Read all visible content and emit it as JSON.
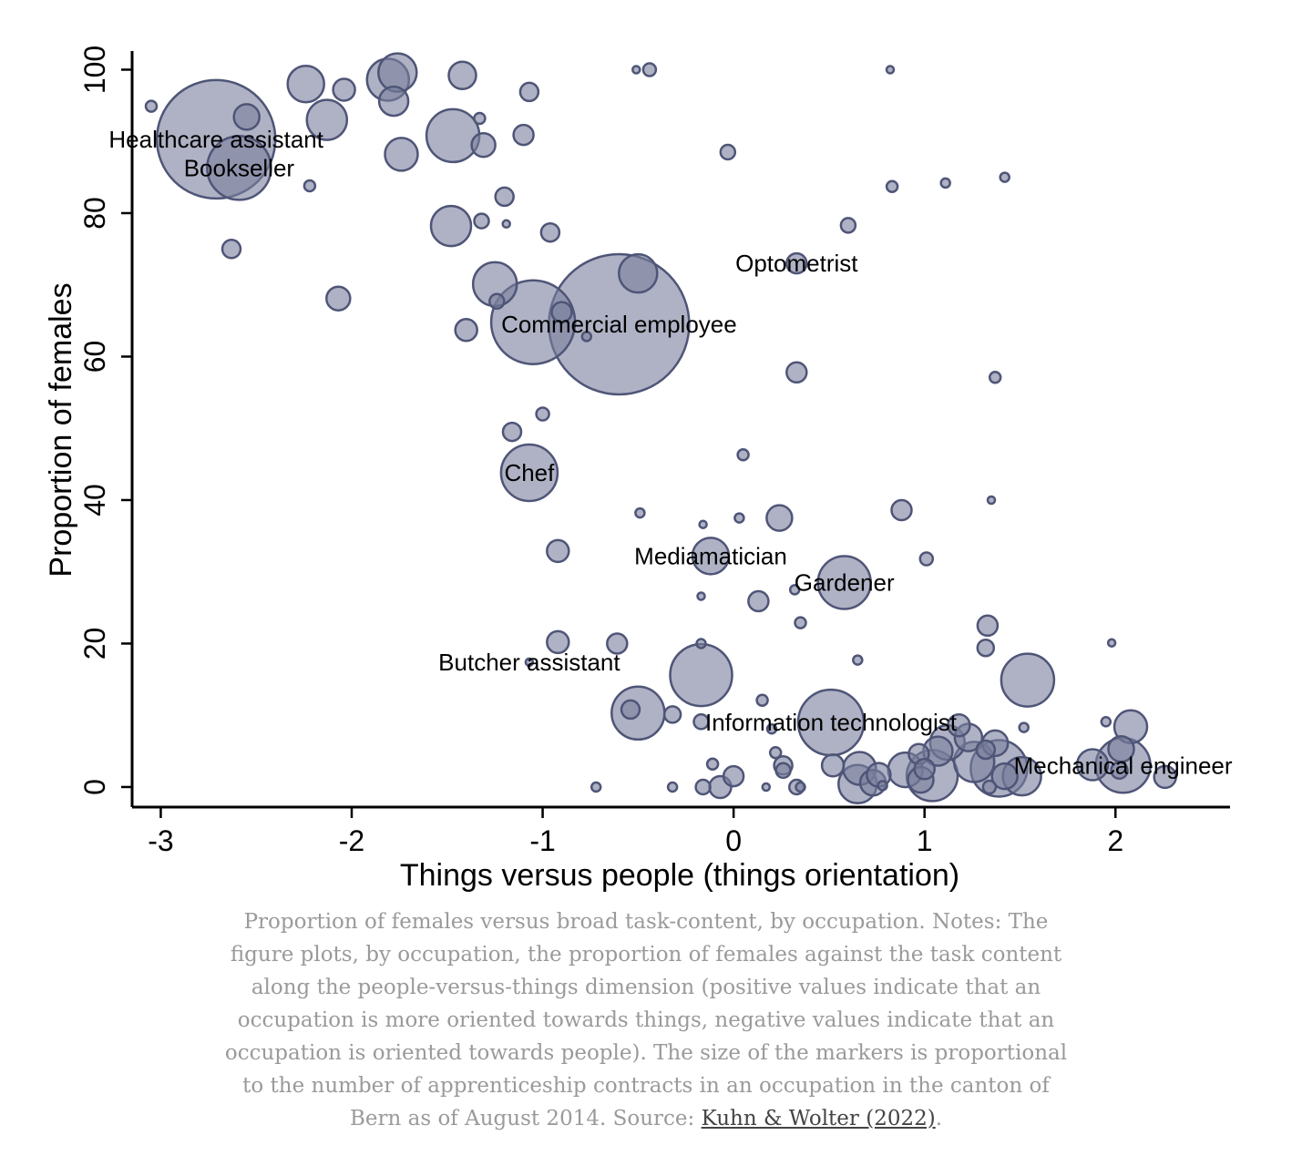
{
  "caption": {
    "text": "Proportion of females versus broad task-content, by occupation. Notes: The figure plots, by occupation, the proportion of females against the task content along the people-versus-things dimension (positive values indicate that an occupation is more oriented towards things, negative values indicate that an occupation is oriented towards people). The size of the markers is proportional to the number of apprenticeship contracts in an occupation in the canton of Bern as of August 2014. Source: ",
    "link_text": "Kuhn & Wolter (2022)",
    "end": "."
  },
  "colors": {
    "bubble_fill": "#7a7f9d",
    "bubble_stroke": "#4f5577"
  },
  "chart_data": {
    "type": "scatter",
    "title": "",
    "xlabel": "Things versus people (things orientation)",
    "ylabel": "Proportion of females",
    "xlim": [
      -3.15,
      2.6
    ],
    "ylim": [
      -2.8,
      102.6
    ],
    "xticks": [
      -3,
      -2,
      -1,
      0,
      1,
      2
    ],
    "xtick_labels": [
      "-3",
      "-2",
      "-1",
      "0",
      "1",
      "2"
    ],
    "yticks": [
      0,
      20,
      40,
      60,
      80,
      100
    ],
    "ytick_labels": [
      "0",
      "20",
      "40",
      "60",
      "80",
      "100"
    ],
    "size_note": "marker size ~ number of apprenticeship contracts",
    "points": [
      {
        "x": -2.71,
        "y": 90.3,
        "r": 65,
        "label": "Healthcare assistant"
      },
      {
        "x": -2.59,
        "y": 86.3,
        "r": 35,
        "label": "Bookseller"
      },
      {
        "x": -0.6,
        "y": 64.5,
        "r": 77,
        "label": "Commercial employee"
      },
      {
        "x": -1.05,
        "y": 64.8,
        "r": 46
      },
      {
        "x": 0.33,
        "y": 73.0,
        "r": 11,
        "label": "Optometrist"
      },
      {
        "x": -1.07,
        "y": 43.8,
        "r": 31,
        "label": "Chef"
      },
      {
        "x": -0.12,
        "y": 32.2,
        "r": 20,
        "label": "Mediamatician"
      },
      {
        "x": 0.58,
        "y": 28.5,
        "r": 29,
        "label": "Gardener"
      },
      {
        "x": -1.07,
        "y": 17.4,
        "r": 4,
        "label": "Butcher assistant"
      },
      {
        "x": 0.51,
        "y": 9.0,
        "r": 36,
        "label": "Information technologist"
      },
      {
        "x": 2.04,
        "y": 3.0,
        "r": 30,
        "label": "Mechanical engineer"
      },
      {
        "x": -3.05,
        "y": 94.9,
        "r": 6
      },
      {
        "x": -2.55,
        "y": 93.4,
        "r": 14
      },
      {
        "x": -2.24,
        "y": 98.0,
        "r": 20
      },
      {
        "x": -2.13,
        "y": 93.0,
        "r": 22
      },
      {
        "x": -2.04,
        "y": 97.2,
        "r": 12
      },
      {
        "x": -2.22,
        "y": 83.8,
        "r": 6
      },
      {
        "x": -1.81,
        "y": 98.6,
        "r": 23
      },
      {
        "x": -1.76,
        "y": 99.6,
        "r": 21
      },
      {
        "x": -1.78,
        "y": 95.6,
        "r": 16
      },
      {
        "x": -1.74,
        "y": 88.2,
        "r": 18
      },
      {
        "x": -1.47,
        "y": 90.8,
        "r": 29
      },
      {
        "x": -1.42,
        "y": 99.2,
        "r": 15
      },
      {
        "x": -1.33,
        "y": 93.2,
        "r": 6
      },
      {
        "x": -1.31,
        "y": 89.5,
        "r": 13
      },
      {
        "x": -1.32,
        "y": 78.9,
        "r": 8
      },
      {
        "x": -1.2,
        "y": 82.3,
        "r": 10
      },
      {
        "x": -1.19,
        "y": 78.5,
        "r": 4
      },
      {
        "x": -1.1,
        "y": 90.9,
        "r": 11
      },
      {
        "x": -1.07,
        "y": 96.9,
        "r": 10
      },
      {
        "x": -0.96,
        "y": 77.3,
        "r": 10
      },
      {
        "x": -1.48,
        "y": 78.2,
        "r": 22
      },
      {
        "x": -2.63,
        "y": 75.0,
        "r": 10
      },
      {
        "x": -2.07,
        "y": 68.1,
        "r": 13
      },
      {
        "x": -1.25,
        "y": 70.1,
        "r": 24
      },
      {
        "x": -1.24,
        "y": 67.7,
        "r": 8
      },
      {
        "x": -0.9,
        "y": 66.2,
        "r": 11
      },
      {
        "x": -0.77,
        "y": 62.8,
        "r": 5
      },
      {
        "x": -1.4,
        "y": 63.7,
        "r": 12
      },
      {
        "x": -0.5,
        "y": 71.6,
        "r": 21
      },
      {
        "x": -0.51,
        "y": 100.0,
        "r": 4
      },
      {
        "x": -0.44,
        "y": 100.0,
        "r": 7
      },
      {
        "x": -0.03,
        "y": 88.5,
        "r": 8
      },
      {
        "x": 0.6,
        "y": 78.3,
        "r": 8
      },
      {
        "x": 0.83,
        "y": 83.7,
        "r": 6
      },
      {
        "x": 0.82,
        "y": 100.0,
        "r": 4
      },
      {
        "x": 1.11,
        "y": 84.2,
        "r": 5
      },
      {
        "x": 1.42,
        "y": 85.0,
        "r": 5
      },
      {
        "x": 0.33,
        "y": 57.8,
        "r": 11
      },
      {
        "x": 1.37,
        "y": 57.1,
        "r": 6
      },
      {
        "x": -1.16,
        "y": 49.5,
        "r": 10
      },
      {
        "x": -1.0,
        "y": 52.0,
        "r": 7
      },
      {
        "x": 0.05,
        "y": 46.3,
        "r": 6
      },
      {
        "x": -0.49,
        "y": 38.2,
        "r": 5
      },
      {
        "x": -0.16,
        "y": 36.6,
        "r": 4
      },
      {
        "x": 0.03,
        "y": 37.5,
        "r": 5
      },
      {
        "x": 0.24,
        "y": 37.5,
        "r": 14
      },
      {
        "x": 0.88,
        "y": 38.6,
        "r": 11
      },
      {
        "x": 1.35,
        "y": 40.0,
        "r": 4
      },
      {
        "x": -0.92,
        "y": 32.9,
        "r": 12
      },
      {
        "x": 1.01,
        "y": 31.8,
        "r": 7
      },
      {
        "x": -0.17,
        "y": 26.6,
        "r": 4
      },
      {
        "x": 0.13,
        "y": 25.9,
        "r": 11
      },
      {
        "x": 0.32,
        "y": 27.5,
        "r": 5
      },
      {
        "x": 0.35,
        "y": 22.9,
        "r": 6
      },
      {
        "x": 1.33,
        "y": 22.5,
        "r": 11
      },
      {
        "x": 1.32,
        "y": 19.4,
        "r": 9
      },
      {
        "x": 1.98,
        "y": 20.1,
        "r": 4
      },
      {
        "x": 0.65,
        "y": 17.7,
        "r": 5
      },
      {
        "x": -0.92,
        "y": 20.2,
        "r": 12
      },
      {
        "x": -0.61,
        "y": 20.0,
        "r": 11
      },
      {
        "x": -0.17,
        "y": 20.0,
        "r": 5
      },
      {
        "x": -0.17,
        "y": 15.6,
        "r": 34
      },
      {
        "x": 1.54,
        "y": 14.9,
        "r": 29
      },
      {
        "x": -0.5,
        "y": 10.3,
        "r": 29
      },
      {
        "x": -0.54,
        "y": 10.8,
        "r": 10
      },
      {
        "x": -0.32,
        "y": 10.1,
        "r": 9
      },
      {
        "x": -0.17,
        "y": 9.1,
        "r": 8
      },
      {
        "x": 0.15,
        "y": 12.1,
        "r": 6
      },
      {
        "x": 0.2,
        "y": 8.1,
        "r": 5
      },
      {
        "x": 0.22,
        "y": 4.8,
        "r": 6
      },
      {
        "x": 0.26,
        "y": 3.0,
        "r": 10
      },
      {
        "x": 0.26,
        "y": 2.3,
        "r": 8
      },
      {
        "x": -0.11,
        "y": 3.2,
        "r": 6
      },
      {
        "x": 0.0,
        "y": 1.5,
        "r": 11
      },
      {
        "x": -0.07,
        "y": 0.0,
        "r": 12
      },
      {
        "x": -0.16,
        "y": 0.0,
        "r": 8
      },
      {
        "x": -0.32,
        "y": 0.0,
        "r": 5
      },
      {
        "x": -0.72,
        "y": 0.0,
        "r": 5
      },
      {
        "x": 0.17,
        "y": 0.0,
        "r": 4
      },
      {
        "x": 0.33,
        "y": 0.0,
        "r": 8
      },
      {
        "x": 0.35,
        "y": 0.0,
        "r": 5
      },
      {
        "x": 0.52,
        "y": 3.0,
        "r": 12
      },
      {
        "x": 0.66,
        "y": 2.6,
        "r": 18
      },
      {
        "x": 0.65,
        "y": 0.4,
        "r": 21
      },
      {
        "x": 0.73,
        "y": 0.6,
        "r": 14
      },
      {
        "x": 0.76,
        "y": 1.7,
        "r": 13
      },
      {
        "x": 0.78,
        "y": 0.2,
        "r": 5
      },
      {
        "x": 0.9,
        "y": 2.4,
        "r": 19
      },
      {
        "x": 0.97,
        "y": 4.6,
        "r": 11
      },
      {
        "x": 0.98,
        "y": 1.0,
        "r": 14
      },
      {
        "x": 1.0,
        "y": 2.5,
        "r": 11
      },
      {
        "x": 1.04,
        "y": 1.6,
        "r": 28
      },
      {
        "x": 1.07,
        "y": 5.0,
        "r": 16
      },
      {
        "x": 1.12,
        "y": 6.2,
        "r": 19
      },
      {
        "x": 1.18,
        "y": 8.6,
        "r": 12
      },
      {
        "x": 1.23,
        "y": 6.9,
        "r": 15
      },
      {
        "x": 1.26,
        "y": 3.5,
        "r": 22
      },
      {
        "x": 1.32,
        "y": 5.2,
        "r": 10
      },
      {
        "x": 1.37,
        "y": 6.1,
        "r": 14
      },
      {
        "x": 1.39,
        "y": 2.6,
        "r": 31
      },
      {
        "x": 1.34,
        "y": 0.0,
        "r": 7
      },
      {
        "x": 1.42,
        "y": 1.5,
        "r": 14
      },
      {
        "x": 1.51,
        "y": 1.5,
        "r": 21
      },
      {
        "x": 1.52,
        "y": 8.3,
        "r": 5
      },
      {
        "x": 1.88,
        "y": 3.1,
        "r": 17
      },
      {
        "x": 1.95,
        "y": 9.1,
        "r": 5
      },
      {
        "x": 2.08,
        "y": 8.4,
        "r": 18
      },
      {
        "x": 2.03,
        "y": 5.3,
        "r": 14
      },
      {
        "x": 2.02,
        "y": 2.3,
        "r": 9
      },
      {
        "x": 2.26,
        "y": 1.4,
        "r": 12
      }
    ]
  }
}
